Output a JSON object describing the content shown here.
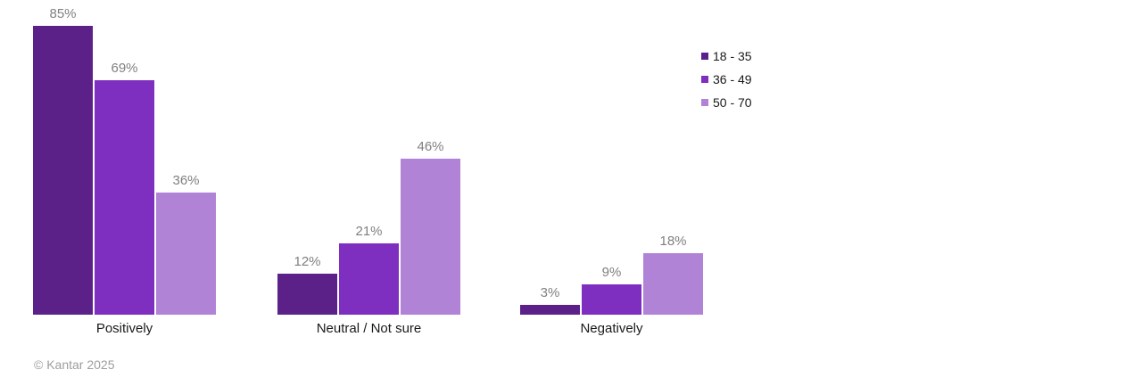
{
  "footer": {
    "copyright": "© Kantar 2025"
  },
  "chart_data": {
    "type": "bar",
    "title": "",
    "categories": [
      "Positively",
      "Neutral / Not sure",
      "Negatively"
    ],
    "series": [
      {
        "name": "18 - 35",
        "color": "#5C2189",
        "values": [
          85,
          12,
          3
        ]
      },
      {
        "name": "36 - 49",
        "color": "#7E2FBF",
        "values": [
          69,
          21,
          9
        ]
      },
      {
        "name": "50 - 70",
        "color": "#B183D6",
        "values": [
          36,
          46,
          18
        ]
      }
    ],
    "value_suffix": "%",
    "value_labels": true,
    "value_label_color": "#808080",
    "xlabel": "",
    "ylabel": "",
    "ylim": [
      0,
      90
    ],
    "grid": false,
    "axis_lines": false,
    "legend_position": "top-right",
    "background_color": "#ffffff"
  }
}
